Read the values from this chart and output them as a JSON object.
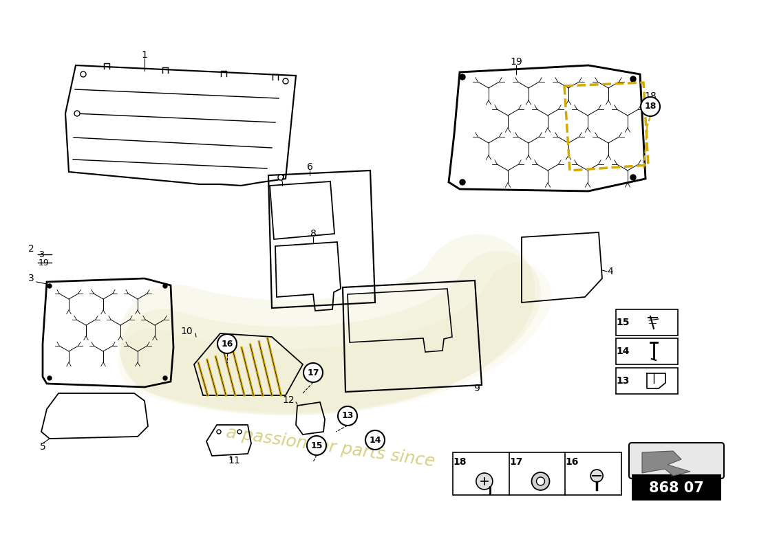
{
  "background_color": "#ffffff",
  "line_color": "#000000",
  "watermark_color": "#c8b84a",
  "part_number": "868 07",
  "label_font_size": 10,
  "wm_logo_color": "#d0c870",
  "yellow_line_color": "#d4aa00"
}
